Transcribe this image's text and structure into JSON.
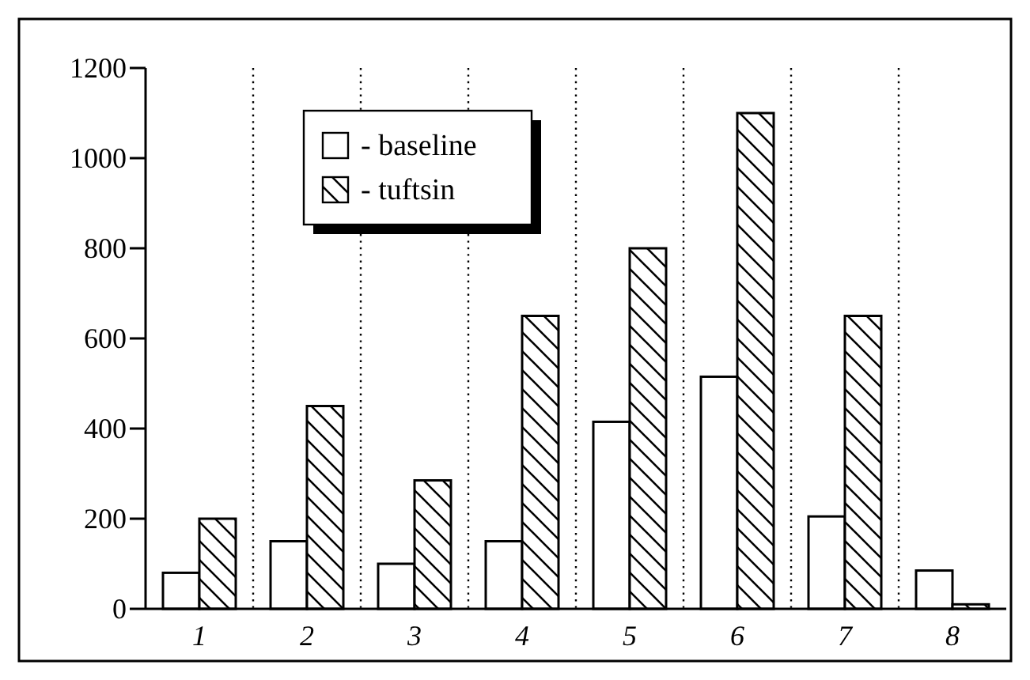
{
  "chart_data": {
    "type": "bar",
    "categories": [
      "1",
      "2",
      "3",
      "4",
      "5",
      "6",
      "7",
      "8"
    ],
    "series": [
      {
        "name": "- baseline",
        "color": "#ffffff",
        "values": [
          80,
          150,
          100,
          150,
          415,
          515,
          205,
          85
        ]
      },
      {
        "name": "- tuftsin",
        "color": "#000000",
        "values": [
          200,
          450,
          285,
          650,
          800,
          1100,
          650,
          10
        ]
      }
    ],
    "ylim": [
      0,
      1200
    ],
    "yticks": [
      0,
      200,
      400,
      600,
      800,
      1000,
      1200
    ],
    "grid": "x",
    "legend": "top"
  }
}
